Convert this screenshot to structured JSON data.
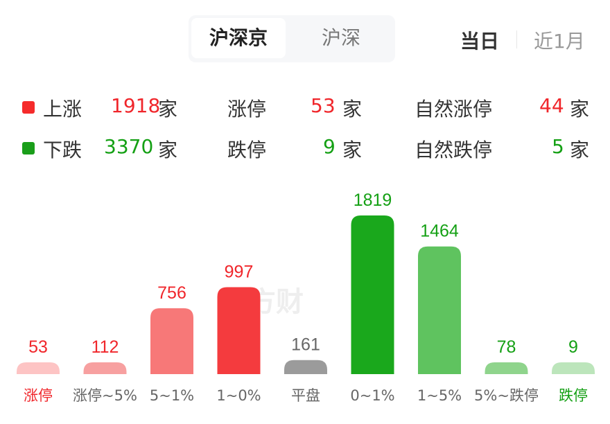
{
  "market_tabs": {
    "items": [
      "沪深京",
      "沪深"
    ],
    "selected": "沪深京"
  },
  "period_tabs": {
    "items": [
      "当日",
      "近1月"
    ],
    "selected": "当日"
  },
  "summary": {
    "up": {
      "label": "上涨",
      "value": "1918",
      "unit": "家",
      "color": "#f52b2b"
    },
    "down": {
      "label": "下跌",
      "value": "3370",
      "unit": "家",
      "color": "#1a9e1a"
    },
    "limit_up": {
      "label": "涨停",
      "value": "53",
      "unit": "家"
    },
    "limit_down": {
      "label": "跌停",
      "value": "9",
      "unit": "家"
    },
    "natural_limit_up": {
      "label": "自然涨停",
      "value": "44",
      "unit": "家"
    },
    "natural_limit_down": {
      "label": "自然跌停",
      "value": "5",
      "unit": "家"
    }
  },
  "watermark": "东方财富",
  "chart_data": {
    "type": "bar",
    "categories": [
      "涨停",
      "涨停~5%",
      "5~1%",
      "1~0%",
      "平盘",
      "0~1%",
      "1~5%",
      "5%~跌停",
      "跌停"
    ],
    "values": [
      53,
      112,
      756,
      997,
      161,
      1819,
      1464,
      78,
      9
    ],
    "colors": [
      "#fdc4c4",
      "#f7a0a0",
      "#f77878",
      "#f43b3e",
      "#9b9b9b",
      "#1aa81c",
      "#5fc35f",
      "#8fd48c",
      "#bce5bb"
    ],
    "label_colors": [
      "#f0262b",
      "#f0262b",
      "#f0262b",
      "#f0262b",
      "#666666",
      "#14a014",
      "#14a014",
      "#14a014",
      "#14a014"
    ],
    "category_label_colors": [
      "#f0262b",
      "#666666",
      "#666666",
      "#666666",
      "#666666",
      "#666666",
      "#666666",
      "#666666",
      "#14a014"
    ],
    "title": "",
    "xlabel": "",
    "ylabel": "",
    "grid": false
  }
}
